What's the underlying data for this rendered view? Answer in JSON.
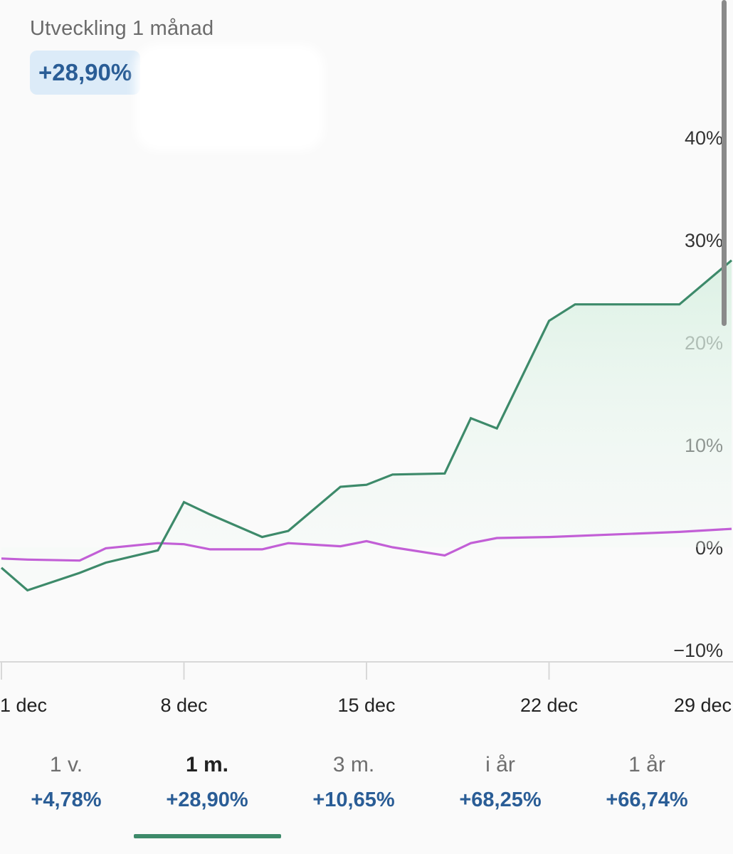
{
  "header": {
    "title": "Utveckling 1 månad",
    "change_pill": "+28,90%"
  },
  "colors": {
    "primary_series": "#3d8a6a",
    "comparison_series": "#c25fd6",
    "accent_text": "#2a5d96",
    "fill": "#e3f3ea"
  },
  "chart_data": {
    "type": "line",
    "x_tick_labels": [
      "1 dec",
      "8 dec",
      "15 dec",
      "22 dec",
      "29 dec"
    ],
    "y_tick_labels": [
      "40%",
      "30%",
      "20%",
      "10%",
      "0%",
      "−10%"
    ],
    "y_ticks": [
      40,
      30,
      20,
      10,
      0,
      -10
    ],
    "ylim": [
      -10,
      40
    ],
    "xlim": [
      "2023-12-01",
      "2023-12-29"
    ],
    "y_axis_position": "right",
    "grid": false,
    "series": [
      {
        "color": "#3d8a6a",
        "filled": true,
        "points": [
          [
            "2023-12-01",
            -2.0
          ],
          [
            "2023-12-02",
            -4.2
          ],
          [
            "2023-12-04",
            -2.5
          ],
          [
            "2023-12-05",
            -1.5
          ],
          [
            "2023-12-07",
            -0.3
          ],
          [
            "2023-12-08",
            4.4
          ],
          [
            "2023-12-09",
            3.2
          ],
          [
            "2023-12-11",
            1.0
          ],
          [
            "2023-12-12",
            1.6
          ],
          [
            "2023-12-14",
            5.9
          ],
          [
            "2023-12-15",
            6.1
          ],
          [
            "2023-12-16",
            7.1
          ],
          [
            "2023-12-18",
            7.2
          ],
          [
            "2023-12-19",
            12.6
          ],
          [
            "2023-12-20",
            11.6
          ],
          [
            "2023-12-22",
            22.1
          ],
          [
            "2023-12-23",
            23.7
          ],
          [
            "2023-12-27",
            23.7
          ],
          [
            "2023-12-29",
            28.0
          ]
        ]
      },
      {
        "color": "#c25fd6",
        "filled": false,
        "points": [
          [
            "2023-12-01",
            -1.1
          ],
          [
            "2023-12-02",
            -1.2
          ],
          [
            "2023-12-04",
            -1.3
          ],
          [
            "2023-12-05",
            -0.1
          ],
          [
            "2023-12-07",
            0.4
          ],
          [
            "2023-12-08",
            0.3
          ],
          [
            "2023-12-09",
            -0.2
          ],
          [
            "2023-12-11",
            -0.2
          ],
          [
            "2023-12-12",
            0.4
          ],
          [
            "2023-12-14",
            0.1
          ],
          [
            "2023-12-15",
            0.6
          ],
          [
            "2023-12-16",
            0.0
          ],
          [
            "2023-12-18",
            -0.8
          ],
          [
            "2023-12-19",
            0.4
          ],
          [
            "2023-12-20",
            0.9
          ],
          [
            "2023-12-22",
            1.0
          ],
          [
            "2023-12-24",
            1.2
          ],
          [
            "2023-12-27",
            1.5
          ],
          [
            "2023-12-29",
            1.8
          ]
        ]
      }
    ]
  },
  "tabs": [
    {
      "label": "1 v.",
      "value": "+4,78%"
    },
    {
      "label": "1 m.",
      "value": "+28,90%",
      "active": true
    },
    {
      "label": "3 m.",
      "value": "+10,65%"
    },
    {
      "label": "i år",
      "value": "+68,25%"
    },
    {
      "label": "1 år",
      "value": "+66,74%"
    }
  ]
}
